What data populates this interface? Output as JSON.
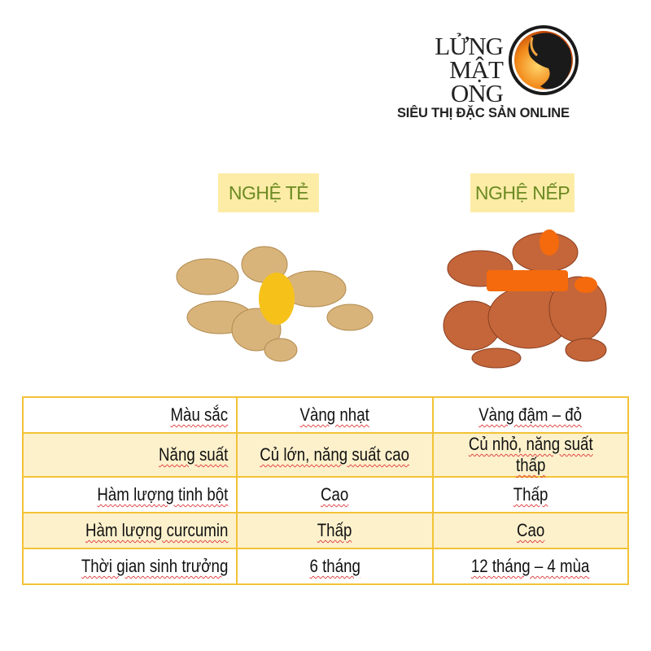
{
  "brand": {
    "name_line1": "LỬNG",
    "name_line2": "MẬT ONG",
    "tagline": "SIÊU THỊ ĐẶC SẢN ONLINE",
    "colors": {
      "orange": "#f28a1a",
      "dark": "#1a1a1a"
    }
  },
  "varieties": [
    {
      "label": "NGHỆ TẺ"
    },
    {
      "label": "NGHỆ NẾP"
    }
  ],
  "colors": {
    "border": "#f3c236",
    "row_alt": "#fdf1cc",
    "tag_bg": "#fdeca6",
    "tag_text": "#6b8a22"
  },
  "table": {
    "rows": [
      {
        "label": "Màu sắc",
        "te": "Vàng nhạt",
        "nep": "Vàng đậm – đỏ"
      },
      {
        "label": "Năng suất",
        "te": "Củ lớn, năng suất cao",
        "nep": "Củ nhỏ, năng suất thấp"
      },
      {
        "label": "Hàm lượng tinh bột",
        "te": "Cao",
        "nep": "Thấp"
      },
      {
        "label": "Hàm lượng curcumin",
        "te": "Thấp",
        "nep": "Cao"
      },
      {
        "label": "Thời gian sinh trưởng",
        "te": "6 tháng",
        "nep": "12 tháng – 4 mùa"
      }
    ]
  }
}
